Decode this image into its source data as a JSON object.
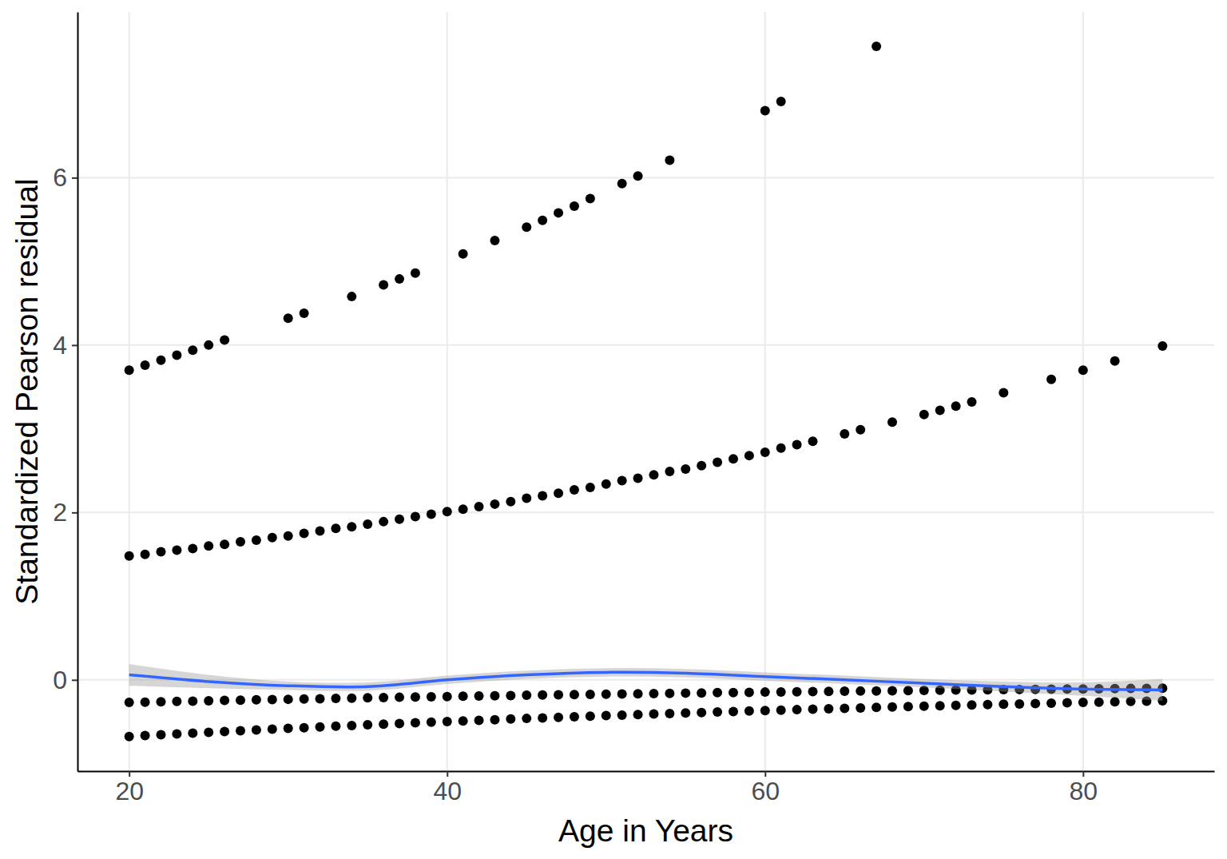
{
  "chart_data": {
    "type": "scatter",
    "x_label": "Age in Years",
    "y_label": "Standardized Pearson residual",
    "xlim": [
      16.75,
      88.25
    ],
    "ylim": [
      -1.09,
      7.98
    ],
    "xticks": [
      20,
      40,
      60,
      80
    ],
    "yticks": [
      0,
      2,
      4,
      6
    ],
    "grid": true,
    "series": [
      {
        "type": "scatter",
        "color": "#000000",
        "marker": "circle",
        "x": [
          20,
          21,
          22,
          23,
          24,
          25,
          26,
          30,
          31,
          34,
          36,
          37,
          38,
          41,
          43,
          45,
          46,
          47,
          48,
          49,
          51,
          52,
          54,
          60,
          61,
          67,
          20,
          21,
          22,
          23,
          24,
          25,
          26,
          27,
          28,
          29,
          30,
          31,
          32,
          33,
          34,
          35,
          36,
          37,
          38,
          39,
          40,
          41,
          42,
          43,
          44,
          45,
          46,
          47,
          48,
          49,
          50,
          51,
          52,
          53,
          54,
          55,
          56,
          57,
          58,
          59,
          60,
          61,
          62,
          63,
          65,
          66,
          68,
          70,
          71,
          72,
          73,
          75,
          78,
          80,
          82,
          85,
          20,
          21,
          22,
          23,
          24,
          25,
          26,
          27,
          28,
          29,
          30,
          31,
          32,
          33,
          34,
          35,
          36,
          37,
          38,
          39,
          40,
          41,
          42,
          43,
          44,
          45,
          46,
          47,
          48,
          49,
          50,
          51,
          52,
          53,
          54,
          55,
          56,
          57,
          58,
          59,
          60,
          61,
          62,
          63,
          64,
          65,
          66,
          67,
          68,
          69,
          70,
          71,
          72,
          73,
          74,
          75,
          76,
          77,
          78,
          79,
          80,
          81,
          82,
          83,
          84,
          85,
          20,
          21,
          22,
          23,
          24,
          25,
          26,
          27,
          28,
          29,
          30,
          31,
          32,
          33,
          34,
          35,
          36,
          37,
          38,
          39,
          40,
          41,
          42,
          43,
          44,
          45,
          46,
          47,
          48,
          49,
          50,
          51,
          52,
          53,
          54,
          55,
          56,
          57,
          58,
          59,
          60,
          61,
          62,
          63,
          64,
          65,
          66,
          67,
          68,
          69,
          70,
          71,
          72,
          73,
          74,
          75,
          76,
          77,
          78,
          79,
          80,
          81,
          82,
          83,
          84,
          85
        ],
        "values": [
          3.7,
          3.76,
          3.82,
          3.88,
          3.94,
          4.0,
          4.06,
          4.32,
          4.38,
          4.58,
          4.72,
          4.79,
          4.86,
          5.09,
          5.25,
          5.41,
          5.49,
          5.58,
          5.66,
          5.75,
          5.93,
          6.02,
          6.21,
          6.8,
          6.91,
          7.57,
          1.48,
          1.5,
          1.53,
          1.55,
          1.57,
          1.6,
          1.62,
          1.65,
          1.67,
          1.7,
          1.72,
          1.75,
          1.78,
          1.81,
          1.83,
          1.86,
          1.89,
          1.92,
          1.95,
          1.98,
          2.01,
          2.04,
          2.07,
          2.1,
          2.13,
          2.17,
          2.2,
          2.23,
          2.27,
          2.3,
          2.34,
          2.38,
          2.41,
          2.45,
          2.49,
          2.52,
          2.56,
          2.6,
          2.64,
          2.68,
          2.72,
          2.77,
          2.81,
          2.85,
          2.94,
          2.99,
          3.08,
          3.17,
          3.22,
          3.27,
          3.32,
          3.43,
          3.59,
          3.7,
          3.81,
          3.99,
          -0.27,
          -0.266,
          -0.262,
          -0.258,
          -0.254,
          -0.25,
          -0.246,
          -0.243,
          -0.239,
          -0.235,
          -0.232,
          -0.228,
          -0.225,
          -0.221,
          -0.218,
          -0.215,
          -0.211,
          -0.208,
          -0.205,
          -0.202,
          -0.199,
          -0.196,
          -0.193,
          -0.19,
          -0.187,
          -0.184,
          -0.181,
          -0.179,
          -0.176,
          -0.173,
          -0.171,
          -0.168,
          -0.166,
          -0.163,
          -0.161,
          -0.158,
          -0.156,
          -0.153,
          -0.151,
          -0.149,
          -0.146,
          -0.144,
          -0.142,
          -0.14,
          -0.138,
          -0.136,
          -0.134,
          -0.132,
          -0.13,
          -0.128,
          -0.126,
          -0.124,
          -0.122,
          -0.12,
          -0.118,
          -0.116,
          -0.115,
          -0.113,
          -0.111,
          -0.11,
          -0.108,
          -0.106,
          -0.105,
          -0.103,
          -0.101,
          -0.1,
          -0.676,
          -0.666,
          -0.656,
          -0.646,
          -0.636,
          -0.626,
          -0.617,
          -0.607,
          -0.598,
          -0.589,
          -0.58,
          -0.571,
          -0.563,
          -0.554,
          -0.546,
          -0.537,
          -0.529,
          -0.521,
          -0.513,
          -0.506,
          -0.498,
          -0.49,
          -0.483,
          -0.476,
          -0.468,
          -0.461,
          -0.454,
          -0.447,
          -0.441,
          -0.434,
          -0.427,
          -0.421,
          -0.414,
          -0.408,
          -0.402,
          -0.396,
          -0.39,
          -0.384,
          -0.378,
          -0.372,
          -0.367,
          -0.361,
          -0.356,
          -0.35,
          -0.345,
          -0.34,
          -0.335,
          -0.329,
          -0.324,
          -0.319,
          -0.315,
          -0.31,
          -0.305,
          -0.301,
          -0.296,
          -0.291,
          -0.287,
          -0.283,
          -0.278,
          -0.274,
          -0.27,
          -0.266,
          -0.262,
          -0.258,
          -0.254,
          -0.25
        ]
      },
      {
        "type": "line",
        "color": "#3366FF",
        "line_style": "solid",
        "x": [
          20,
          25,
          30,
          35,
          40,
          45,
          50,
          55,
          60,
          65,
          70,
          75,
          80,
          85
        ],
        "values": [
          0.06,
          -0.02,
          -0.07,
          -0.08,
          0.0,
          0.06,
          0.09,
          0.08,
          0.04,
          0.0,
          -0.04,
          -0.08,
          -0.11,
          -0.12
        ],
        "lower": [
          -0.07,
          -0.1,
          -0.12,
          -0.13,
          -0.05,
          0.01,
          0.04,
          0.03,
          -0.01,
          -0.05,
          -0.09,
          -0.14,
          -0.19,
          -0.25
        ],
        "upper": [
          0.19,
          0.06,
          -0.02,
          -0.03,
          0.05,
          0.11,
          0.14,
          0.13,
          0.09,
          0.05,
          0.01,
          -0.02,
          -0.03,
          0.01
        ]
      }
    ]
  }
}
